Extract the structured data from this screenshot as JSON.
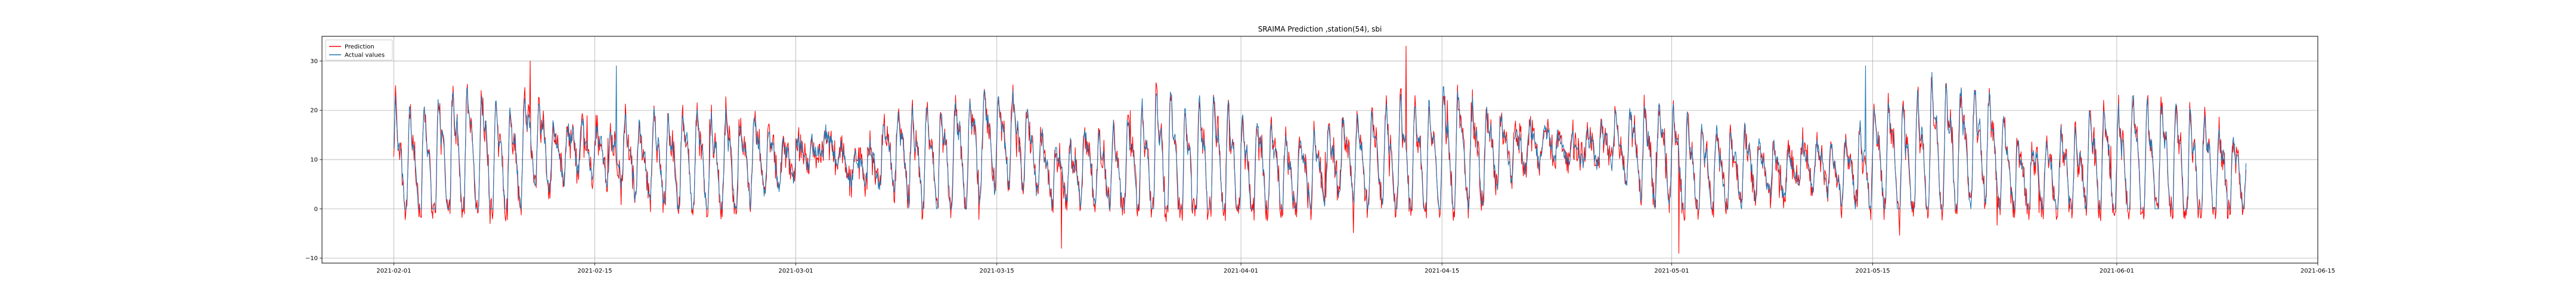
{
  "chart_data": {
    "type": "line",
    "title": "SRAIMA Prediction ,station(54), sbi",
    "xlabel": "",
    "ylabel": "",
    "x_start": "2021-02-01",
    "x_end": "2021-06-10",
    "xlim": [
      "2021-01-27",
      "2021-06-15"
    ],
    "ylim": [
      -11,
      35
    ],
    "x_ticks": [
      "2021-02-01",
      "2021-02-15",
      "2021-03-01",
      "2021-03-15",
      "2021-04-01",
      "2021-04-15",
      "2021-05-01",
      "2021-05-15",
      "2021-06-01",
      "2021-06-15"
    ],
    "y_ticks": [
      -10,
      0,
      10,
      20,
      30
    ],
    "grid": true,
    "legend_position": "top-left",
    "series": [
      {
        "name": "Prediction",
        "color": "#ff0000",
        "description": "approximately daily-periodic signal between about -8 and 33, mean ~9"
      },
      {
        "name": "Actual values",
        "color": "#1f77b4",
        "description": "approximately daily-periodic signal between about 0 and 29, mean ~9"
      }
    ],
    "notable_points": [
      {
        "series": "Prediction",
        "date": "2021-04-12",
        "value": 33
      },
      {
        "series": "Prediction",
        "date": "2021-02-10",
        "value": 30
      },
      {
        "series": "Prediction",
        "date": "2021-03-19",
        "value": -8
      },
      {
        "series": "Prediction",
        "date": "2021-05-01",
        "value": -9
      },
      {
        "series": "Actual values",
        "date": "2021-05-14",
        "value": 29
      },
      {
        "series": "Actual values",
        "date": "2021-02-16",
        "value": 29
      }
    ]
  }
}
